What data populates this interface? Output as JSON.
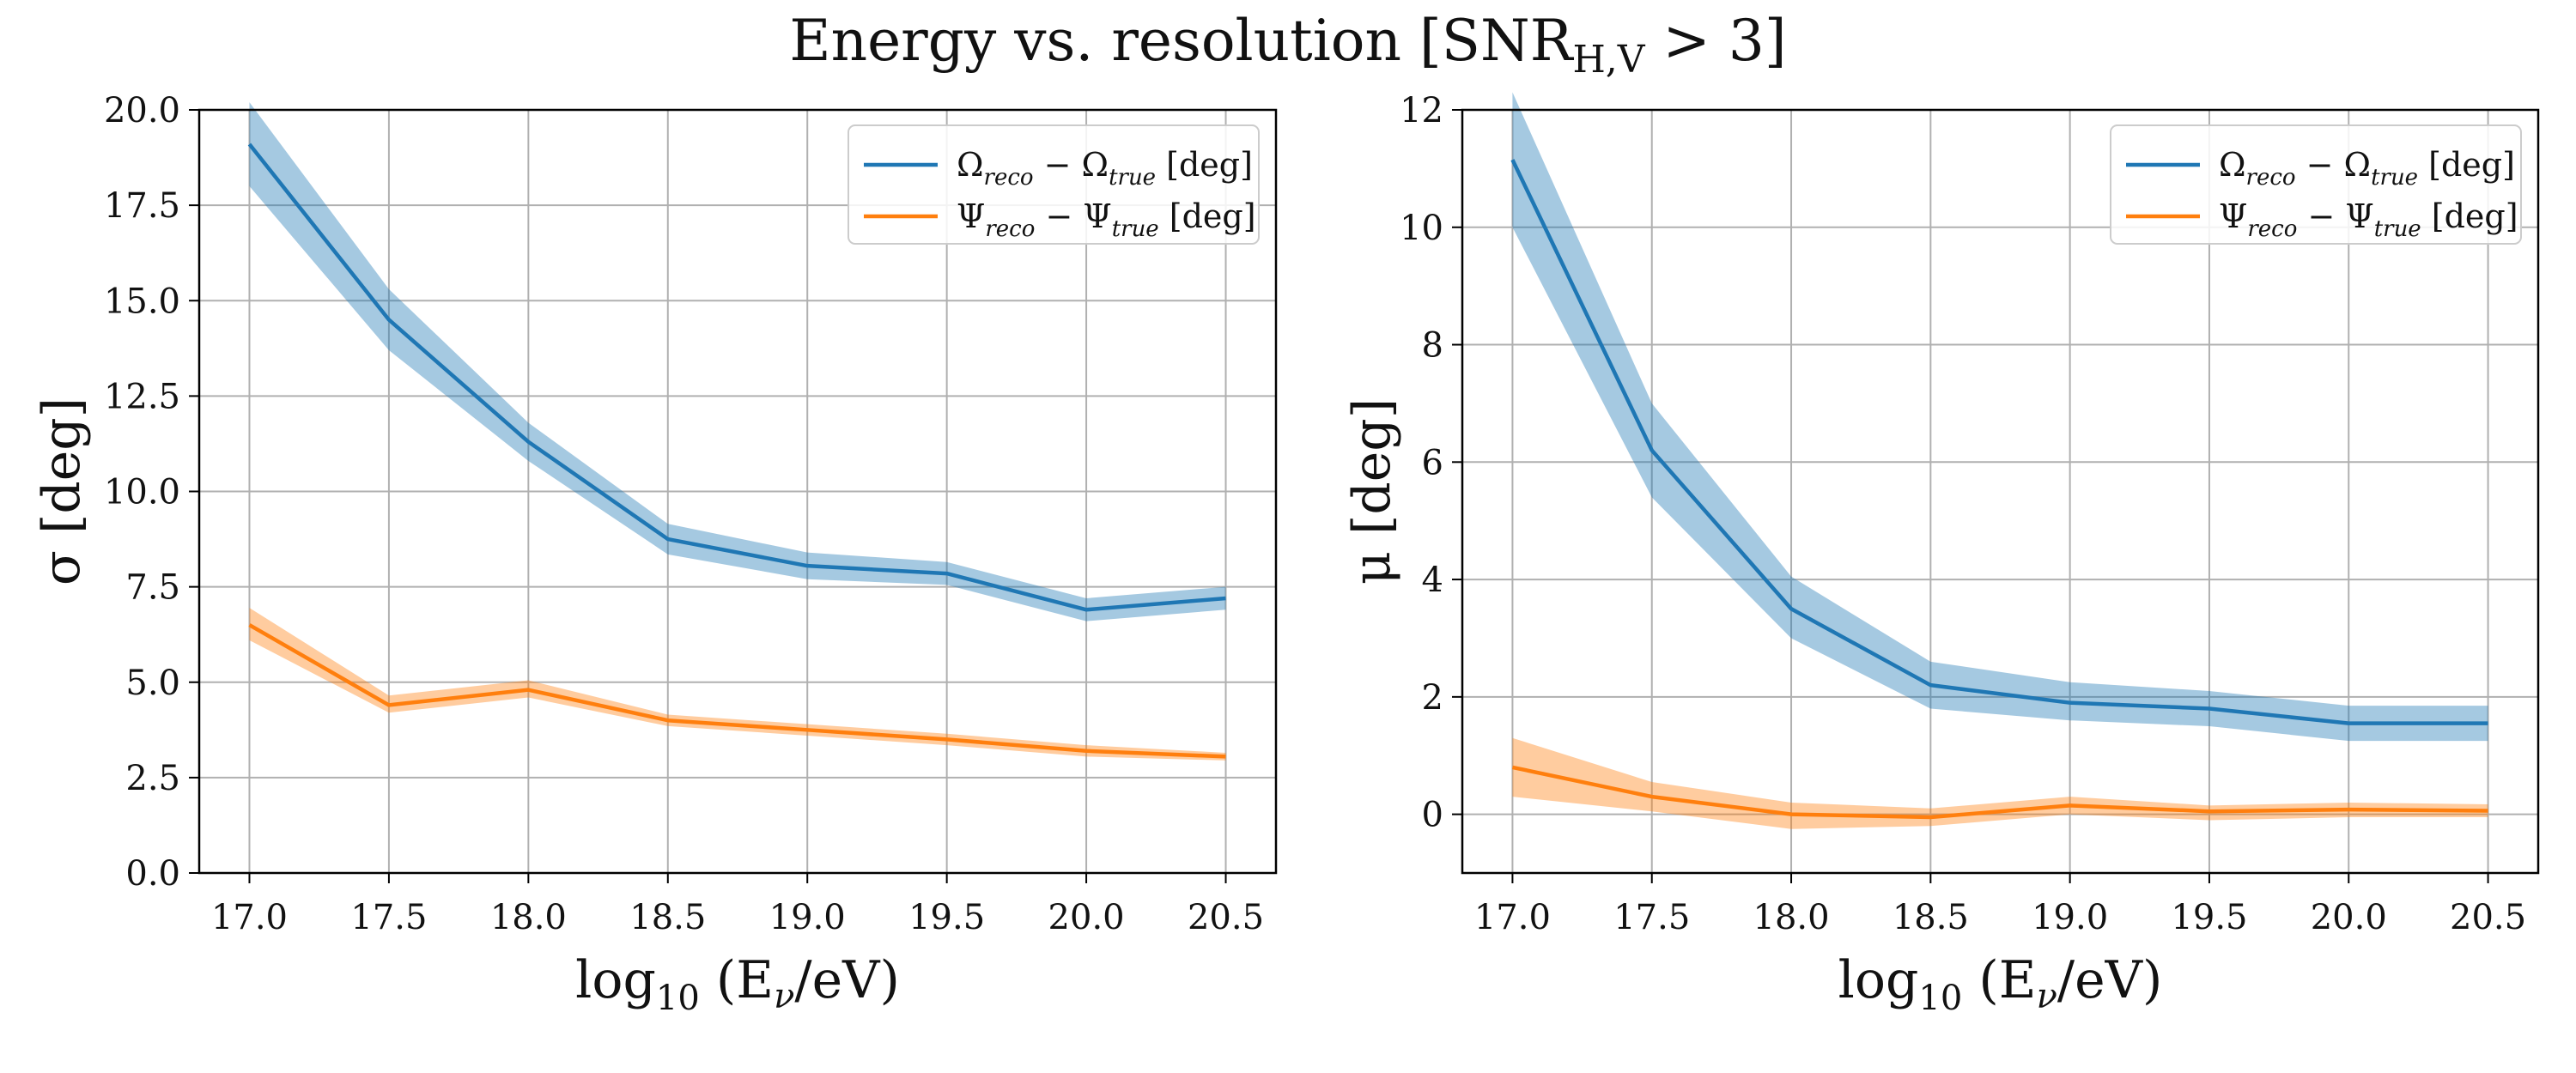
{
  "figure": {
    "title": "Energy vs. resolution [SNR",
    "title_sub": "H,V",
    "title_tail": " > 3]"
  },
  "chart_data": [
    {
      "type": "line",
      "x": [
        17.0,
        17.5,
        18.0,
        18.5,
        19.0,
        19.5,
        20.0,
        20.5
      ],
      "xlim": [
        16.82,
        20.68
      ],
      "ylim": [
        0,
        20
      ],
      "xticks": [
        17.0,
        17.5,
        18.0,
        18.5,
        19.0,
        19.5,
        20.0,
        20.5
      ],
      "yticks": [
        0.0,
        2.5,
        5.0,
        7.5,
        10.0,
        12.5,
        15.0,
        17.5,
        20.0
      ],
      "xtick_labels": [
        "17.0",
        "17.5",
        "18.0",
        "18.5",
        "19.0",
        "19.5",
        "20.0",
        "20.5"
      ],
      "ytick_labels": [
        "0.0",
        "2.5",
        "5.0",
        "7.5",
        "10.0",
        "12.5",
        "15.0",
        "17.5",
        "20.0"
      ],
      "xlabel": "log10(Eν/eV)",
      "ylabel": "σ [deg]",
      "grid": true,
      "legend_position": "top-right",
      "series": [
        {
          "name": "Ωreco − Ωtrue [deg]",
          "color": "#1f77b4",
          "band_color": "#1f77b4",
          "values": [
            19.1,
            14.5,
            11.3,
            8.75,
            8.05,
            7.85,
            6.9,
            7.2
          ],
          "lower": [
            18.0,
            13.7,
            10.8,
            8.35,
            7.7,
            7.55,
            6.6,
            6.9
          ],
          "upper": [
            20.2,
            15.3,
            11.8,
            9.15,
            8.4,
            8.15,
            7.2,
            7.5
          ]
        },
        {
          "name": "Ψreco − Ψtrue [deg]",
          "color": "#ff7f0e",
          "band_color": "#ff7f0e",
          "values": [
            6.5,
            4.4,
            4.8,
            4.0,
            3.75,
            3.5,
            3.2,
            3.05
          ],
          "lower": [
            6.1,
            4.2,
            4.6,
            3.85,
            3.6,
            3.35,
            3.05,
            2.95
          ],
          "upper": [
            6.95,
            4.65,
            5.05,
            4.15,
            3.9,
            3.65,
            3.35,
            3.15
          ]
        }
      ]
    },
    {
      "type": "line",
      "x": [
        17.0,
        17.5,
        18.0,
        18.5,
        19.0,
        19.5,
        20.0,
        20.5
      ],
      "xlim": [
        16.82,
        20.68
      ],
      "ylim": [
        -1,
        12
      ],
      "xticks": [
        17.0,
        17.5,
        18.0,
        18.5,
        19.0,
        19.5,
        20.0,
        20.5
      ],
      "yticks": [
        0,
        2,
        4,
        6,
        8,
        10,
        12
      ],
      "xtick_labels": [
        "17.0",
        "17.5",
        "18.0",
        "18.5",
        "19.0",
        "19.5",
        "20.0",
        "20.5"
      ],
      "ytick_labels": [
        "0",
        "2",
        "4",
        "6",
        "8",
        "10",
        "12"
      ],
      "xlabel": "log10(Eν/eV)",
      "ylabel": "μ [deg]",
      "grid": true,
      "legend_position": "top-right",
      "series": [
        {
          "name": "Ωreco − Ωtrue [deg]",
          "color": "#1f77b4",
          "band_color": "#1f77b4",
          "values": [
            11.15,
            6.2,
            3.5,
            2.2,
            1.9,
            1.8,
            1.55,
            1.55
          ],
          "lower": [
            10.0,
            5.4,
            3.0,
            1.8,
            1.6,
            1.5,
            1.25,
            1.25
          ],
          "upper": [
            12.3,
            7.0,
            4.05,
            2.6,
            2.25,
            2.1,
            1.85,
            1.85
          ]
        },
        {
          "name": "Ψreco − Ψtrue [deg]",
          "color": "#ff7f0e",
          "band_color": "#ff7f0e",
          "values": [
            0.8,
            0.3,
            0.0,
            -0.05,
            0.15,
            0.05,
            0.08,
            0.06
          ],
          "lower": [
            0.3,
            0.05,
            -0.25,
            -0.2,
            0.0,
            -0.1,
            -0.05,
            -0.05
          ],
          "upper": [
            1.3,
            0.55,
            0.2,
            0.1,
            0.3,
            0.15,
            0.2,
            0.17
          ]
        }
      ]
    }
  ]
}
